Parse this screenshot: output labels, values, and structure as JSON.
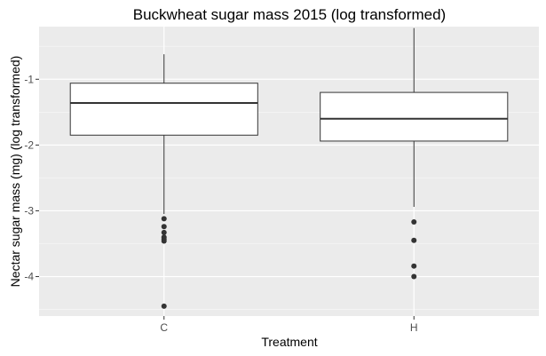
{
  "chart_data": {
    "type": "boxplot",
    "title": "Buckwheat sugar mass 2015 (log transformed)",
    "xlabel": "Treatment",
    "ylabel": "Nectar sugar mass (mg) (log transformed)",
    "categories": [
      "C",
      "H"
    ],
    "y_ticks": [
      -1,
      -2,
      -3,
      -4
    ],
    "y_tick_labels": [
      "-1",
      "-2",
      "-3",
      "-4"
    ],
    "ylim": [
      -4.6,
      -0.2
    ],
    "grid": true,
    "boxes": [
      {
        "category": "C",
        "whisker_low": -3.05,
        "q1": -1.85,
        "median": -1.36,
        "q3": -1.06,
        "whisker_high": -0.62,
        "outliers": [
          -3.12,
          -3.24,
          -3.33,
          -3.4,
          -3.43,
          -3.46,
          -4.45
        ]
      },
      {
        "category": "H",
        "whisker_low": -2.94,
        "q1": -1.94,
        "median": -1.6,
        "q3": -1.2,
        "whisker_high": -0.22,
        "outliers": [
          -3.17,
          -3.45,
          -3.84,
          -4.0
        ]
      }
    ],
    "colors": {
      "panel": "#ebebeb",
      "grid_major": "#ffffff",
      "box_fill": "#ffffff",
      "box_line": "#333333",
      "outlier": "#333333"
    }
  }
}
